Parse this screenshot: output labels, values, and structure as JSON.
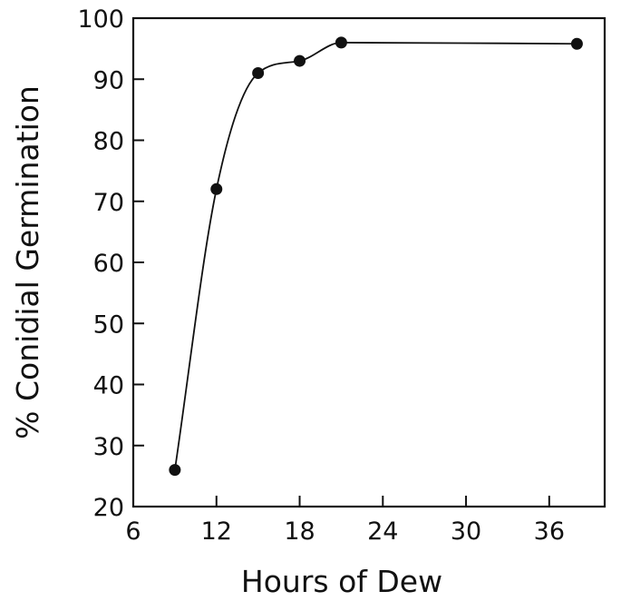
{
  "chart_data": {
    "type": "line",
    "xlabel": "Hours of Dew",
    "ylabel": "% Conidial Germination",
    "xlim": [
      6,
      40
    ],
    "ylim": [
      20,
      100
    ],
    "xticks": [
      6,
      12,
      18,
      24,
      30,
      36
    ],
    "yticks": [
      20,
      30,
      40,
      50,
      60,
      70,
      80,
      90,
      100
    ],
    "grid": false,
    "series": [
      {
        "x": [
          9,
          12,
          15,
          18,
          21,
          38
        ],
        "y": [
          26,
          72,
          91,
          93,
          96,
          95.8
        ]
      }
    ],
    "colors": {
      "line": "#111111",
      "marker": "#111111"
    }
  }
}
